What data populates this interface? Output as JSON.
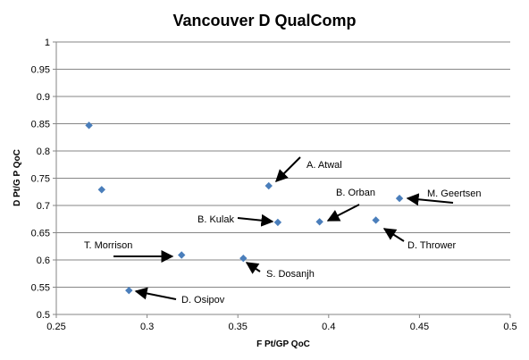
{
  "chart_data": {
    "type": "scatter",
    "title": "Vancouver D QualComp",
    "xlabel": "F Pt/GP QoC",
    "ylabel": "D Pt/G P QoC",
    "xlim": [
      0.25,
      0.5
    ],
    "ylim": [
      0.5,
      1.0
    ],
    "xticks": [
      0.25,
      0.3,
      0.35,
      0.4,
      0.45,
      0.5
    ],
    "xtick_labels": [
      "0.25",
      "0.3",
      "0.35",
      "0.4",
      "0.45",
      "0.5"
    ],
    "yticks": [
      0.5,
      0.55,
      0.6,
      0.65,
      0.7,
      0.75,
      0.8,
      0.85,
      0.9,
      0.95,
      1.0
    ],
    "ytick_labels": [
      "0.5",
      "0.55",
      "0.6",
      "0.65",
      "0.7",
      "0.75",
      "0.8",
      "0.85",
      "0.9",
      "0.95",
      "1"
    ],
    "grid": "horizontal",
    "legend": "none",
    "marker_color": "#4a7ebb",
    "points": [
      {
        "x": 0.268,
        "y": 0.847,
        "label": ""
      },
      {
        "x": 0.275,
        "y": 0.729,
        "label": ""
      },
      {
        "x": 0.367,
        "y": 0.736,
        "label": "A. Atwal"
      },
      {
        "x": 0.439,
        "y": 0.713,
        "label": "M. Geertsen"
      },
      {
        "x": 0.395,
        "y": 0.67,
        "label": "B. Orban"
      },
      {
        "x": 0.372,
        "y": 0.669,
        "label": "B. Kulak"
      },
      {
        "x": 0.426,
        "y": 0.673,
        "label": "D. Thrower"
      },
      {
        "x": 0.319,
        "y": 0.609,
        "label": "T. Morrison"
      },
      {
        "x": 0.353,
        "y": 0.603,
        "label": "S. Dosanjh"
      },
      {
        "x": 0.29,
        "y": 0.544,
        "label": "D. Osipov"
      }
    ]
  }
}
